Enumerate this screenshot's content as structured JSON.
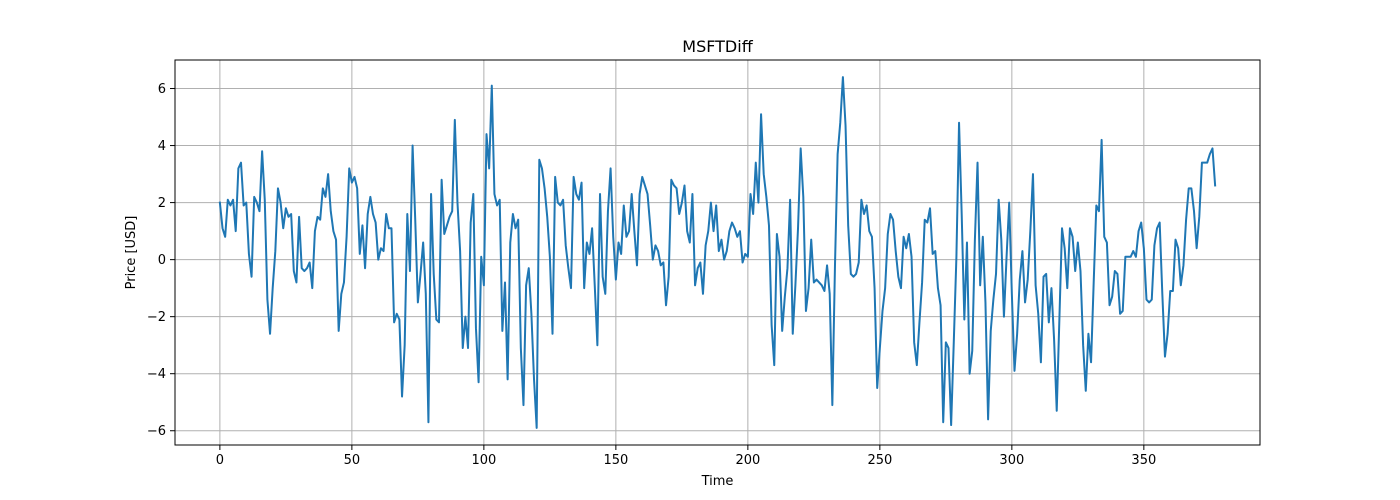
{
  "chart_data": {
    "type": "line",
    "title": "MSFTDiff",
    "xlabel": "Time",
    "ylabel": "Price [USD]",
    "xlim": [
      -17,
      394
    ],
    "ylim": [
      -6.5,
      7.0
    ],
    "xticks": [
      0,
      50,
      100,
      150,
      200,
      250,
      300,
      350
    ],
    "yticks": [
      -6,
      -4,
      -2,
      0,
      2,
      4,
      6
    ],
    "grid": true,
    "series": [
      {
        "color": "#1f77b4",
        "values": [
          2.0,
          1.1,
          0.8,
          2.1,
          1.9,
          2.1,
          1.0,
          3.2,
          3.4,
          1.9,
          2.0,
          0.2,
          -0.6,
          2.2,
          2.0,
          1.7,
          3.8,
          2.1,
          -1.4,
          -2.6,
          -1.0,
          0.3,
          2.5,
          2.0,
          1.1,
          1.8,
          1.5,
          1.6,
          -0.4,
          -0.8,
          1.5,
          -0.3,
          -0.4,
          -0.3,
          -0.1,
          -1.0,
          1.0,
          1.5,
          1.4,
          2.5,
          2.2,
          3.0,
          1.7,
          1.0,
          0.7,
          -2.5,
          -1.2,
          -0.8,
          0.8,
          3.2,
          2.7,
          2.9,
          2.5,
          0.2,
          1.2,
          -0.3,
          1.6,
          2.2,
          1.6,
          1.3,
          0.0,
          0.4,
          0.3,
          1.6,
          1.1,
          1.1,
          -2.2,
          -1.9,
          -2.1,
          -4.8,
          -3.0,
          1.6,
          -0.4,
          4.0,
          1.4,
          -1.5,
          -0.5,
          0.6,
          -1.2,
          -5.7,
          2.3,
          -0.5,
          -2.1,
          -2.2,
          2.8,
          0.9,
          1.2,
          1.5,
          1.7,
          4.9,
          2.0,
          0.3,
          -3.1,
          -2.0,
          -3.1,
          1.3,
          2.3,
          -2.4,
          -4.3,
          0.1,
          -0.9,
          4.4,
          3.2,
          6.1,
          2.3,
          1.9,
          2.1,
          -2.5,
          -0.8,
          -4.2,
          0.6,
          1.6,
          1.1,
          1.4,
          -3.1,
          -5.1,
          -0.9,
          -0.3,
          -1.9,
          -4.2,
          -5.9,
          3.5,
          3.2,
          2.5,
          1.5,
          0.1,
          -2.6,
          2.9,
          2.0,
          1.9,
          2.1,
          0.5,
          -0.3,
          -1.0,
          2.9,
          2.3,
          2.1,
          2.7,
          -1.0,
          0.6,
          0.2,
          1.1,
          -0.9,
          -3.0,
          2.3,
          -0.6,
          -1.2,
          1.7,
          3.2,
          0.8,
          -0.7,
          0.6,
          0.2,
          1.9,
          0.8,
          1.0,
          2.3,
          1.0,
          -0.2,
          2.3,
          2.9,
          2.6,
          2.3,
          1.2,
          0.0,
          0.5,
          0.3,
          -0.2,
          -0.1,
          -1.6,
          -0.6,
          2.8,
          2.6,
          2.5,
          1.6,
          2.0,
          2.6,
          1.0,
          0.6,
          2.3,
          -0.9,
          -0.3,
          -0.1,
          -1.2,
          0.5,
          1.0,
          2.0,
          1.0,
          1.9,
          0.3,
          0.7,
          0.0,
          0.3,
          1.0,
          1.3,
          1.1,
          0.8,
          1.0,
          -0.1,
          0.2,
          0.1,
          2.3,
          1.6,
          3.4,
          2.0,
          5.1,
          3.0,
          2.2,
          1.2,
          -2.3,
          -3.7,
          0.9,
          0.1,
          -2.5,
          -1.3,
          -0.3,
          2.1,
          -2.6,
          -0.9,
          1.1,
          3.9,
          2.2,
          -1.8,
          -1.0,
          0.7,
          -0.8,
          -0.7,
          -0.8,
          -0.9,
          -1.1,
          -0.2,
          -1.2,
          -5.1,
          -0.2,
          3.7,
          4.8,
          6.4,
          4.7,
          1.2,
          -0.5,
          -0.6,
          -0.5,
          -0.1,
          2.1,
          1.6,
          1.9,
          1.0,
          0.8,
          -1.0,
          -4.5,
          -3.1,
          -1.8,
          -1.0,
          0.9,
          1.6,
          1.4,
          0.3,
          -0.6,
          -1.0,
          0.8,
          0.4,
          0.9,
          0.1,
          -2.9,
          -3.7,
          -2.2,
          -0.8,
          1.4,
          1.3,
          1.8,
          0.2,
          0.3,
          -1.0,
          -1.6,
          -5.7,
          -2.9,
          -3.1,
          -5.8,
          -2.9,
          0.1,
          4.8,
          1.6,
          -2.1,
          0.6,
          -4.0,
          -3.2,
          0.7,
          3.4,
          -0.9,
          0.8,
          -1.5,
          -5.6,
          -2.5,
          -1.4,
          -0.5,
          2.1,
          0.7,
          -2.0,
          0.1,
          2.0,
          -1.2,
          -3.9,
          -2.6,
          -0.7,
          0.3,
          -1.5,
          -0.7,
          1.0,
          3.0,
          -0.9,
          -1.9,
          -3.6,
          -0.6,
          -0.5,
          -2.2,
          -1.0,
          -2.8,
          -5.3,
          -2.1,
          1.1,
          0.4,
          -1.0,
          1.1,
          0.8,
          -0.4,
          0.6,
          -0.4,
          -3.0,
          -4.6,
          -2.6,
          -3.6,
          -0.8,
          1.9,
          1.7,
          4.2,
          0.8,
          0.6,
          -1.6,
          -1.3,
          -0.4,
          -0.5,
          -1.9,
          -1.8,
          0.1,
          0.1,
          0.1,
          0.3,
          0.1,
          1.0,
          1.3,
          0.4,
          -1.4,
          -1.5,
          -1.4,
          0.5,
          1.1,
          1.3,
          -1.2,
          -3.4,
          -2.6,
          -1.1,
          -1.1,
          0.7,
          0.4,
          -0.9,
          -0.2,
          1.4,
          2.5,
          2.5,
          1.7,
          0.4,
          1.5,
          3.4,
          3.4,
          3.4,
          3.7,
          3.9,
          2.6
        ]
      }
    ]
  }
}
